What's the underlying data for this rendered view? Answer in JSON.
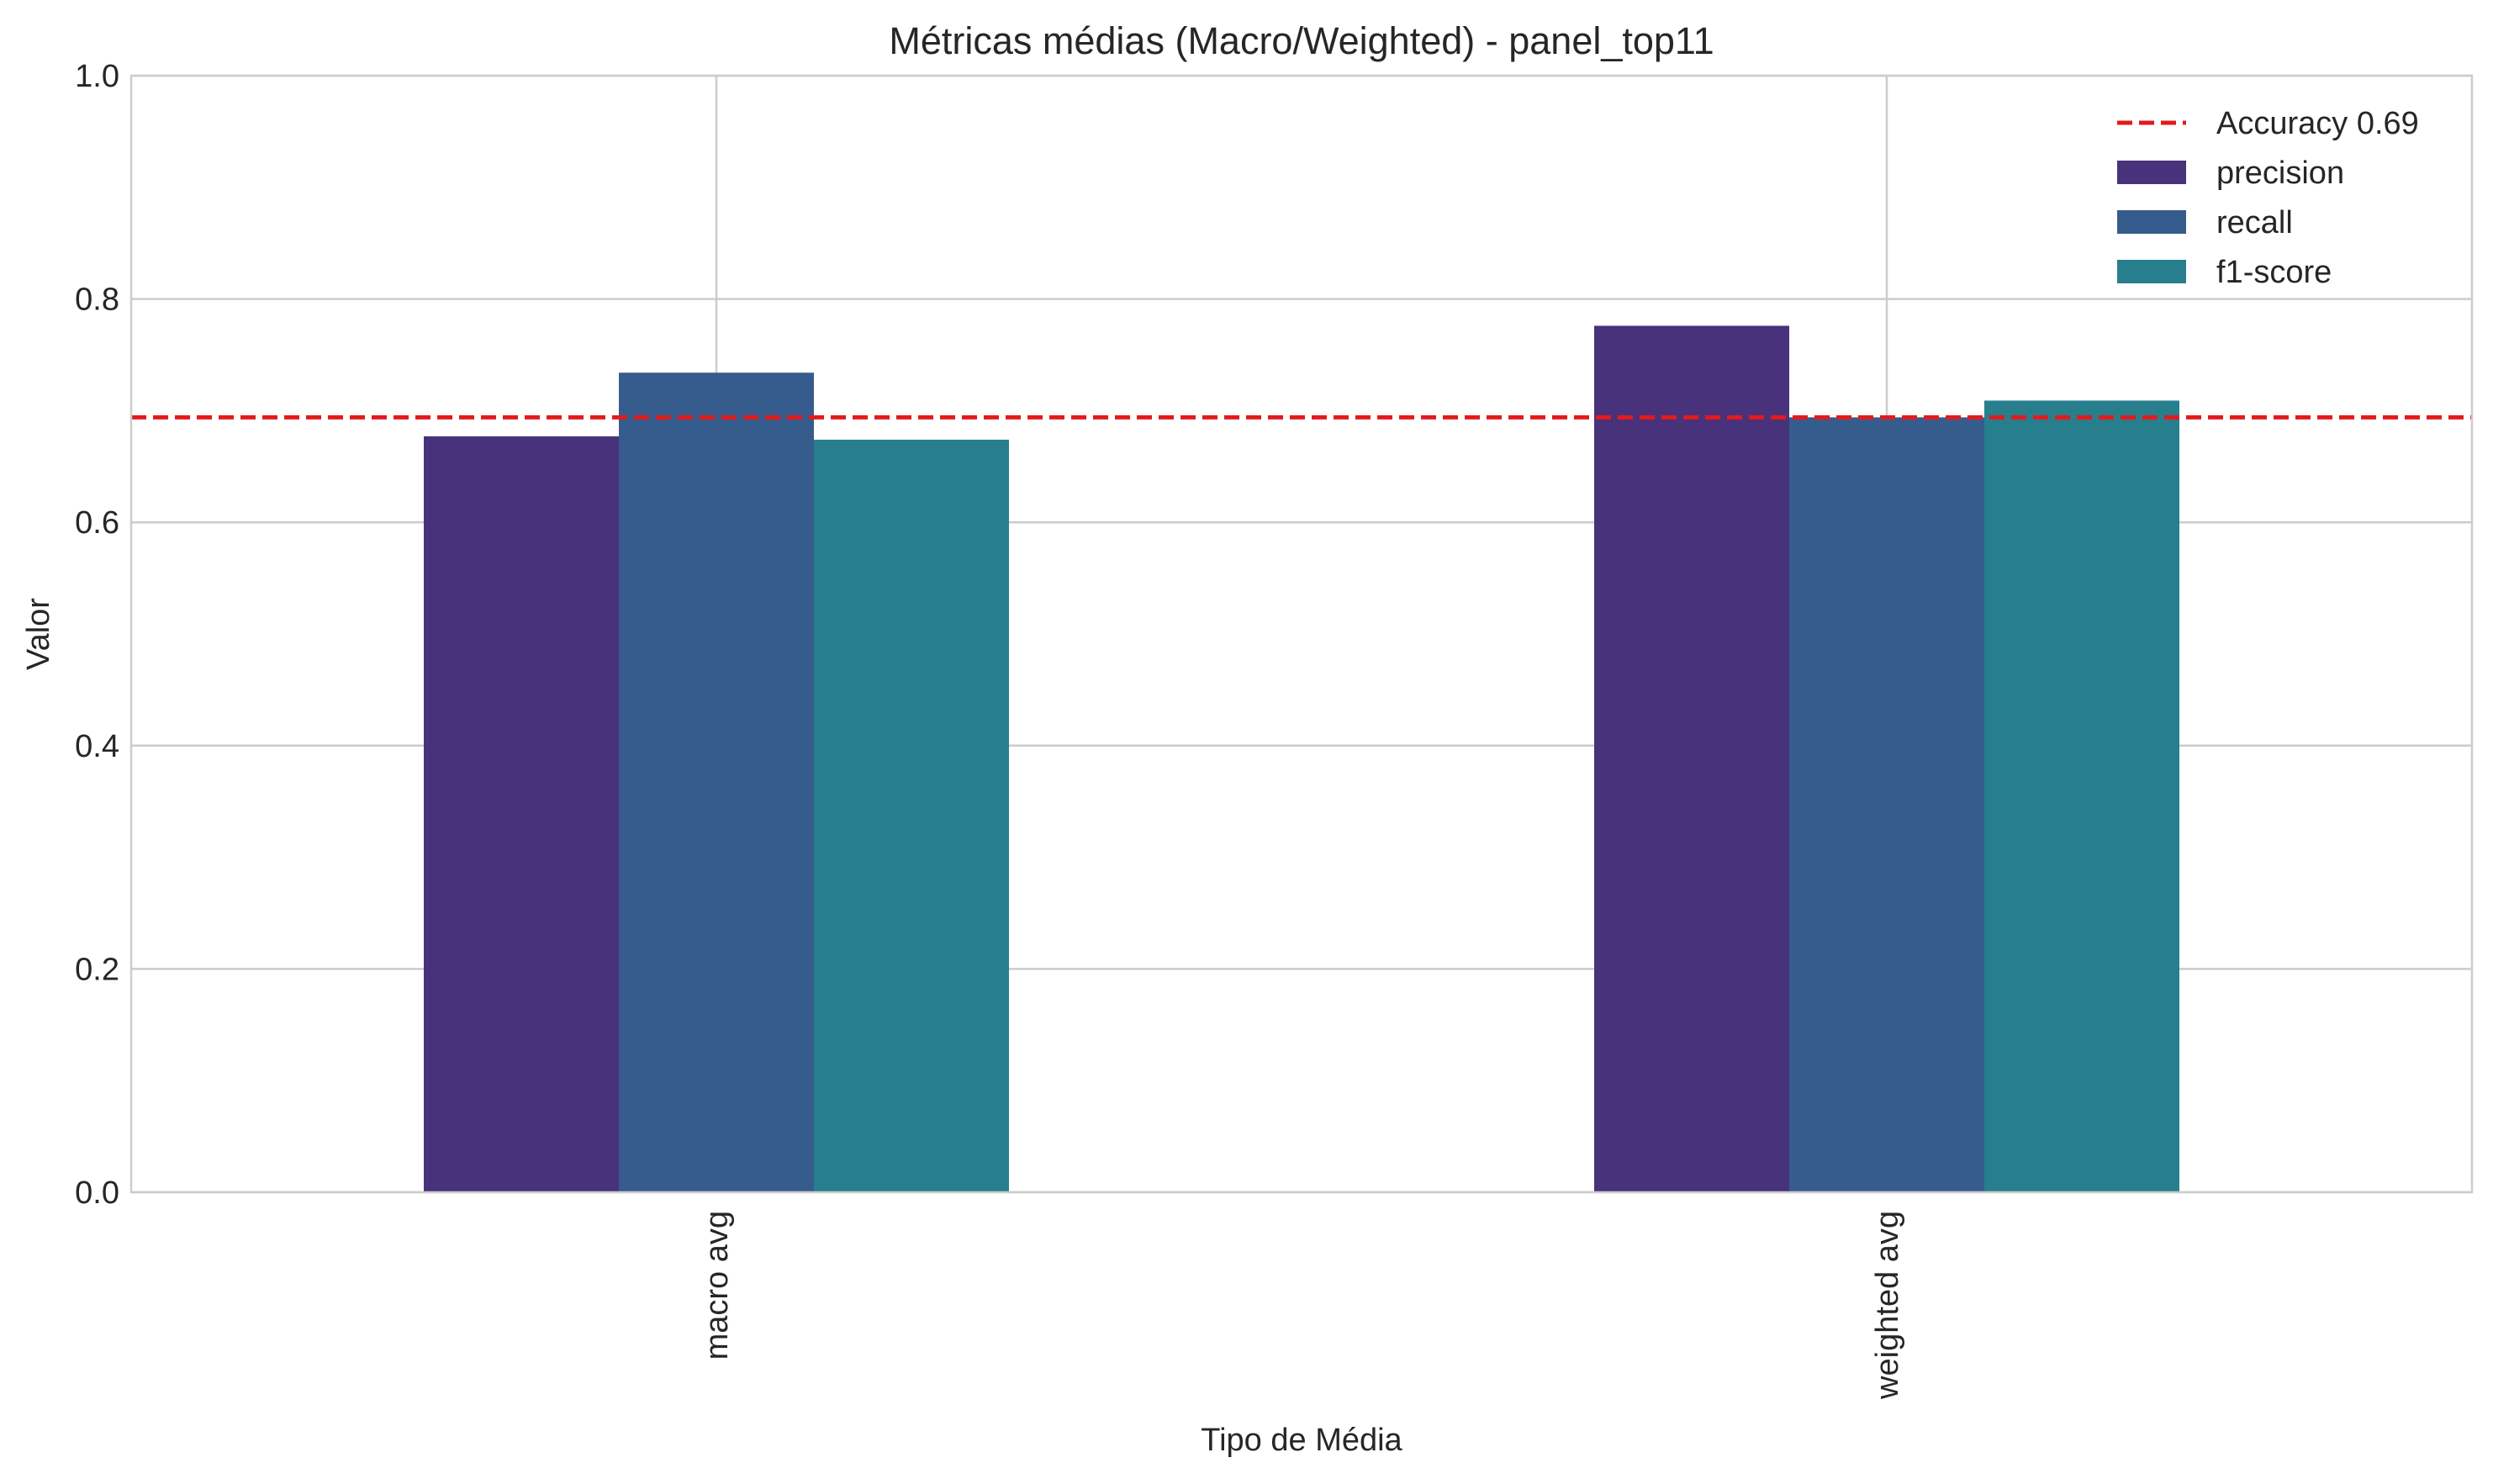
{
  "chart_data": {
    "type": "bar",
    "title": "Métricas médias (Macro/Weighted) - panel_top11",
    "xlabel": "Tipo de Média",
    "ylabel": "Valor",
    "ylim": [
      0,
      1.0
    ],
    "yticks": [
      "0.0",
      "0.2",
      "0.4",
      "0.6",
      "0.8",
      "1.0"
    ],
    "categories": [
      "macro avg",
      "weighted avg"
    ],
    "series": [
      {
        "name": "precision",
        "color": "#48327c",
        "values": [
          0.677,
          0.776
        ]
      },
      {
        "name": "recall",
        "color": "#365c8d",
        "values": [
          0.734,
          0.694
        ]
      },
      {
        "name": "f1-score",
        "color": "#277f8e",
        "values": [
          0.674,
          0.709
        ]
      }
    ],
    "reference_line": {
      "label": "Accuracy 0.69",
      "value": 0.694,
      "color": "#e31a1c",
      "style": "dashed"
    },
    "grid": true,
    "legend_position": "top-right"
  }
}
